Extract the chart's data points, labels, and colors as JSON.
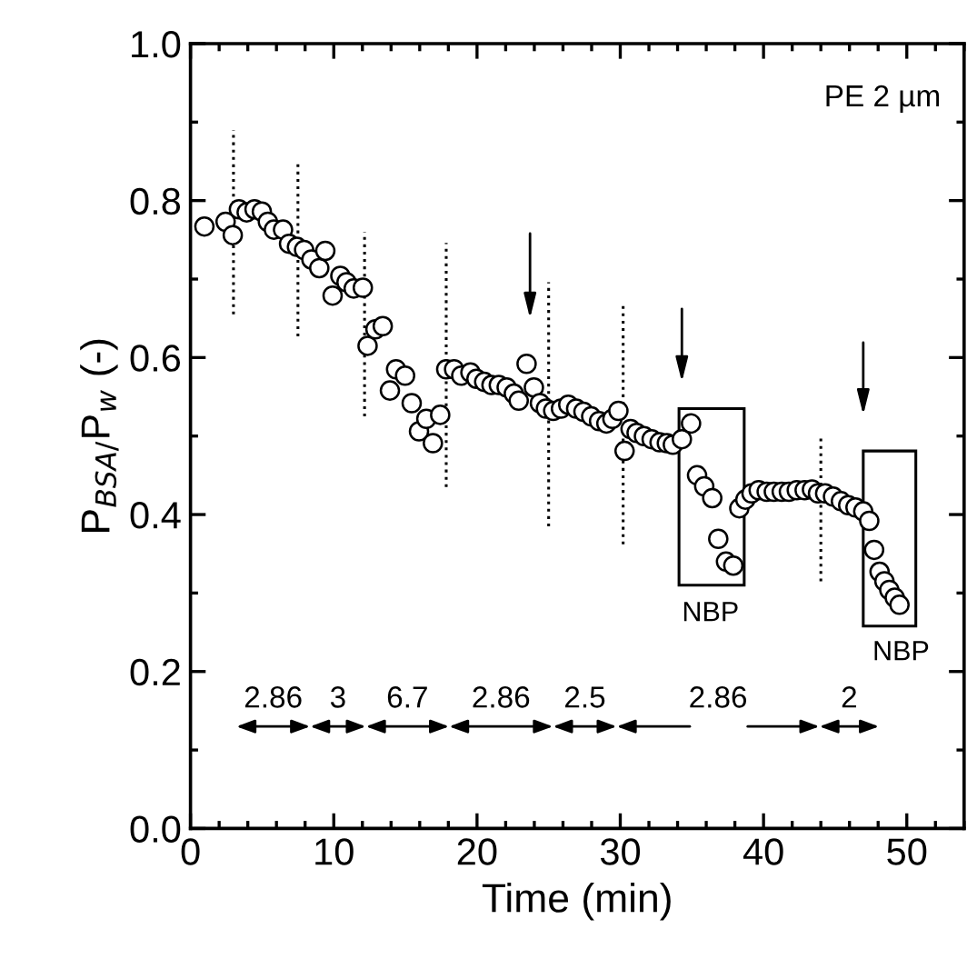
{
  "chart_data": {
    "type": "scatter",
    "xlabel": "Time (min)",
    "ylabel": "P$_{BSA/}$P$_{w}$ (-)",
    "xlim": [
      0,
      54
    ],
    "xticks": [
      0,
      10,
      20,
      30,
      40,
      50
    ],
    "ylim": [
      0,
      1.0
    ],
    "yticks": [
      {
        "value": 0,
        "label": "0.0"
      },
      0.2,
      0.4,
      0.6,
      0.8,
      {
        "value": 1,
        "label": "1.0"
      }
    ],
    "grid": false,
    "legend": false,
    "series": [
      {
        "color": "#000000",
        "marker": "circle",
        "x": [
          0.97,
          2.45,
          2.95,
          3.38,
          3.92,
          4.47,
          4.98,
          5.4,
          5.82,
          6.46,
          6.88,
          7.43,
          7.93,
          8.44,
          8.99,
          9.41,
          9.92,
          10.46,
          10.89,
          11.39,
          12.03,
          12.36,
          12.91,
          13.42,
          13.92,
          14.35,
          14.98,
          15.44,
          15.95,
          16.46,
          16.92,
          17.43,
          17.85,
          18.4,
          18.9,
          19.54,
          19.96,
          20.5,
          21.01,
          21.52,
          22.07,
          22.57,
          22.91,
          23.46,
          23.97,
          24.39,
          24.81,
          25.32,
          25.86,
          26.37,
          26.92,
          27.43,
          27.97,
          28.52,
          29.03,
          29.45,
          29.87,
          30.3,
          30.72,
          31.14,
          31.65,
          32.19,
          32.74,
          33.25,
          33.67,
          34.3,
          34.94,
          35.36,
          35.86,
          36.42,
          36.84,
          37.38,
          37.89,
          38.31,
          38.73,
          39.16,
          39.66,
          40.22,
          40.72,
          41.27,
          41.77,
          42.32,
          42.87,
          43.38,
          43.8,
          44.3,
          44.85,
          45.4,
          45.91,
          46.42,
          46.96,
          47.38,
          47.72,
          48.1,
          48.44,
          48.78,
          49.16,
          49.49
        ],
        "values": [
          0.767,
          0.773,
          0.756,
          0.789,
          0.785,
          0.789,
          0.786,
          0.773,
          0.763,
          0.763,
          0.745,
          0.741,
          0.737,
          0.725,
          0.714,
          0.736,
          0.679,
          0.704,
          0.696,
          0.688,
          0.689,
          0.615,
          0.636,
          0.64,
          0.558,
          0.585,
          0.577,
          0.542,
          0.506,
          0.522,
          0.491,
          0.527,
          0.585,
          0.585,
          0.577,
          0.581,
          0.573,
          0.569,
          0.565,
          0.565,
          0.562,
          0.554,
          0.545,
          0.592,
          0.562,
          0.542,
          0.535,
          0.532,
          0.535,
          0.54,
          0.535,
          0.531,
          0.525,
          0.519,
          0.516,
          0.522,
          0.532,
          0.481,
          0.509,
          0.504,
          0.5,
          0.496,
          0.492,
          0.491,
          0.489,
          0.496,
          0.516,
          0.45,
          0.436,
          0.421,
          0.369,
          0.34,
          0.335,
          0.408,
          0.419,
          0.427,
          0.431,
          0.429,
          0.429,
          0.429,
          0.429,
          0.431,
          0.431,
          0.432,
          0.427,
          0.427,
          0.423,
          0.417,
          0.412,
          0.409,
          0.404,
          0.392,
          0.355,
          0.327,
          0.315,
          0.304,
          0.294,
          0.285
        ]
      },
      {
        "type": "line",
        "color": "#000000",
        "line_style": "dotted",
        "x": [
          3.0,
          3.0,
          null,
          7.5,
          7.5,
          null,
          12.15,
          12.15,
          null,
          17.85,
          17.85,
          null,
          25.0,
          25.0,
          null,
          30.2,
          30.2,
          null,
          44.0,
          44.0
        ],
        "values": [
          0.655,
          0.89,
          null,
          0.627,
          0.848,
          null,
          0.525,
          0.76,
          null,
          0.435,
          0.746,
          null,
          0.385,
          0.696,
          null,
          0.362,
          0.671,
          null,
          0.315,
          0.5
        ]
      }
    ],
    "annotations": [
      "PE 2 µm",
      "NBP",
      "NBP",
      "2.86",
      "3",
      "6.7",
      "2.86",
      "2.5",
      "2.86",
      "2"
    ]
  }
}
